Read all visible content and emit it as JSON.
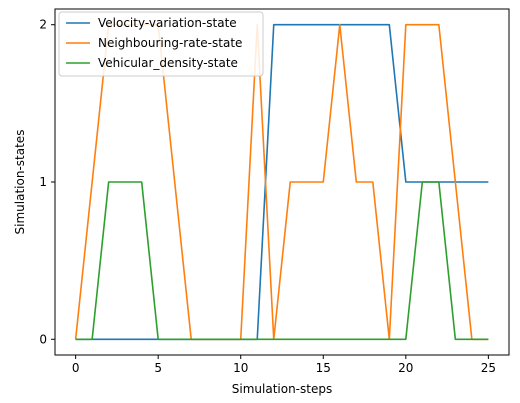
{
  "chart_data": {
    "type": "line",
    "xlabel": "Simulation-steps",
    "ylabel": "Simulation-states",
    "xlim": [
      -1.25,
      26.25
    ],
    "ylim": [
      -0.1,
      2.1
    ],
    "x_ticks": [
      0,
      5,
      10,
      15,
      20,
      25
    ],
    "y_ticks": [
      0,
      1,
      2
    ],
    "x": [
      0,
      1,
      2,
      3,
      4,
      5,
      6,
      7,
      8,
      9,
      10,
      11,
      12,
      13,
      14,
      15,
      16,
      17,
      18,
      19,
      20,
      21,
      22,
      23,
      24,
      25
    ],
    "series": [
      {
        "name": "Velocity-variation-state",
        "color": "#1f77b4",
        "values": [
          0,
          0,
          0,
          0,
          0,
          0,
          0,
          0,
          0,
          0,
          0,
          0,
          2,
          2,
          2,
          2,
          2,
          2,
          2,
          2,
          1,
          1,
          1,
          1,
          1,
          1
        ]
      },
      {
        "name": "Neighbouring-rate-state",
        "color": "#ff7f0e",
        "values": [
          0,
          1,
          2,
          2,
          2,
          2,
          1,
          0,
          0,
          0,
          0,
          2,
          0,
          1,
          1,
          1,
          2,
          1,
          1,
          0,
          2,
          2,
          2,
          1,
          0,
          0
        ]
      },
      {
        "name": "Vehicular_density-state",
        "color": "#2ca02c",
        "values": [
          0,
          0,
          1,
          1,
          1,
          0,
          0,
          0,
          0,
          0,
          0,
          0,
          0,
          0,
          0,
          0,
          0,
          0,
          0,
          0,
          0,
          1,
          1,
          0,
          0,
          0
        ]
      }
    ],
    "grid": false,
    "legend_position": "top-left"
  }
}
